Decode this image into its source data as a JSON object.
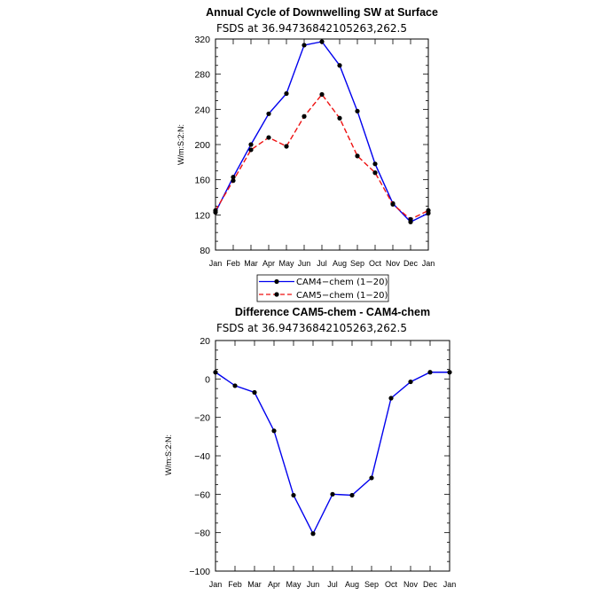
{
  "chart_data": [
    {
      "type": "line",
      "title": "Annual Cycle of Downwelling SW at Surface",
      "subtitle": "FSDS at 36.94736842105263,262.5",
      "xlabel": "",
      "ylabel": "W/m:S:2:N:",
      "categories": [
        "Jan",
        "Feb",
        "Mar",
        "Apr",
        "May",
        "Jun",
        "Jul",
        "Aug",
        "Sep",
        "Oct",
        "Nov",
        "Dec",
        "Jan"
      ],
      "ylim": [
        80,
        320
      ],
      "yticks": [
        "80",
        "120",
        "160",
        "200",
        "240",
        "280",
        "320"
      ],
      "series": [
        {
          "name": "CAM4−chem (1−20)",
          "color": "#0000ee",
          "dash": "solid",
          "values": [
            123,
            163,
            200,
            235,
            258,
            313,
            317,
            290,
            238,
            178,
            133,
            112,
            122
          ]
        },
        {
          "name": "CAM5−chem (1−20)",
          "color": "#ee1111",
          "dash": "dashed",
          "values": [
            125,
            159,
            194,
            208,
            198,
            232,
            257,
            230,
            187,
            168,
            132,
            115,
            125
          ]
        }
      ],
      "legend": {
        "position": "bottom-center"
      }
    },
    {
      "type": "line",
      "title": "Difference CAM5-chem - CAM4-chem",
      "subtitle": "FSDS at 36.94736842105263,262.5",
      "xlabel": "",
      "ylabel": "W/m:S:2:N:",
      "categories": [
        "Jan",
        "Feb",
        "Mar",
        "Apr",
        "May",
        "Jun",
        "Jul",
        "Aug",
        "Sep",
        "Oct",
        "Nov",
        "Dec",
        "Jan"
      ],
      "ylim": [
        -100,
        20
      ],
      "yticks": [
        "−100",
        "−80",
        "−60",
        "−40",
        "−20",
        "0",
        "20"
      ],
      "series": [
        {
          "name": "CAM5−chem − CAM4−chem",
          "color": "#0000ee",
          "dash": "solid",
          "values": [
            3.5,
            -3.5,
            -7,
            -27,
            -60.5,
            -80.5,
            -60,
            -60.5,
            -51.5,
            -10,
            -1.5,
            3.5,
            3.5
          ]
        }
      ]
    }
  ]
}
